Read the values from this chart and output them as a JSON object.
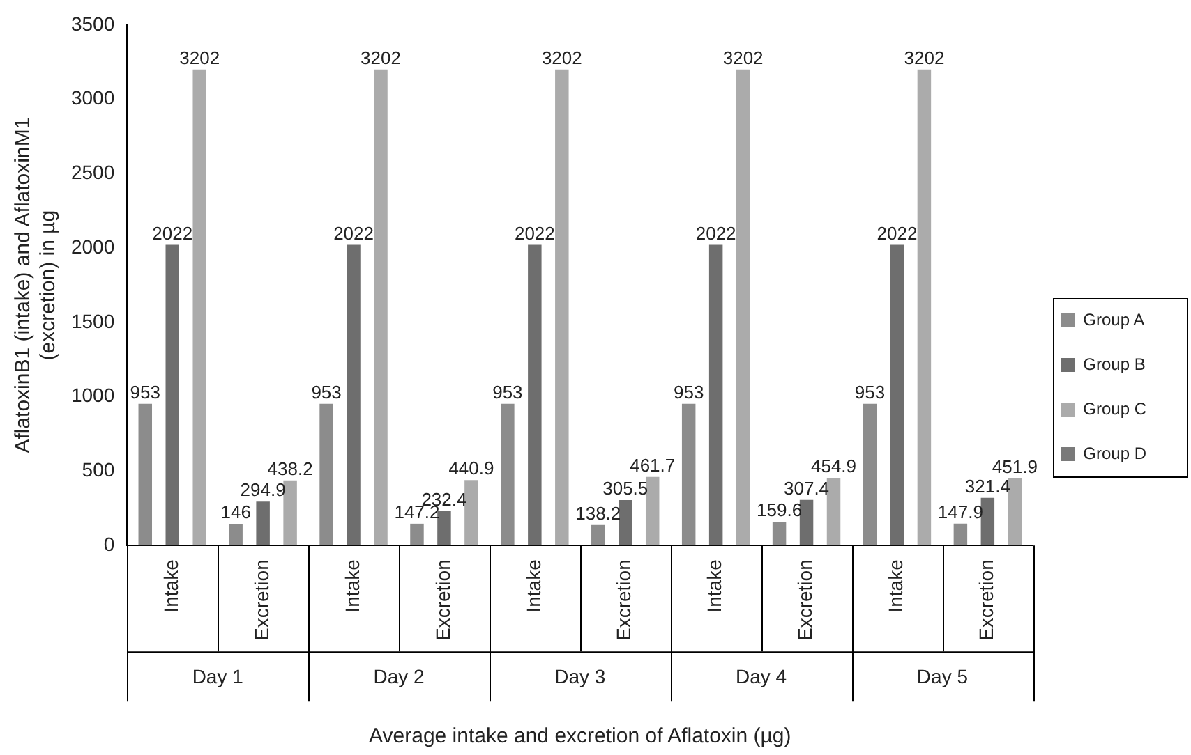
{
  "chart_data": {
    "type": "bar",
    "xlabel": "Average intake and excretion of Aflatoxin (µg)",
    "ylabel": "AflatoxinB1 (intake) and AflatoxinM1\n(excretion) in µg",
    "categories": [
      "Intake",
      "Excretion",
      "Intake",
      "Excretion",
      "Intake",
      "Excretion",
      "Intake",
      "Excretion",
      "Intake",
      "Excretion"
    ],
    "annotations": [
      "Day 1",
      "Day 2",
      "Day 3",
      "Day 4",
      "Day 5"
    ],
    "series": [
      {
        "name": "Group A",
        "color": "#8c8c8c",
        "values": [
          953,
          146,
          953,
          147.2,
          953,
          138.2,
          953,
          159.6,
          953,
          147.9
        ]
      },
      {
        "name": "Group B",
        "color": "#6e6e6e",
        "values": [
          2022,
          294.9,
          2022,
          232.4,
          2022,
          305.5,
          2022,
          307.4,
          2022,
          321.4
        ]
      },
      {
        "name": "Group C",
        "color": "#ababab",
        "values": [
          3202,
          438.2,
          3202,
          440.9,
          3202,
          461.7,
          3202,
          454.9,
          3202,
          451.9
        ]
      },
      {
        "name": "Group D",
        "color": "#7a7a7a",
        "values": [
          null,
          null,
          null,
          null,
          null,
          null,
          null,
          null,
          null,
          null
        ]
      }
    ],
    "ylim": [
      0,
      3500
    ],
    "yticks": [
      0,
      500,
      1000,
      1500,
      2000,
      2500,
      3000,
      3500
    ],
    "grid": false,
    "legend": "right",
    "data_labels": true
  }
}
